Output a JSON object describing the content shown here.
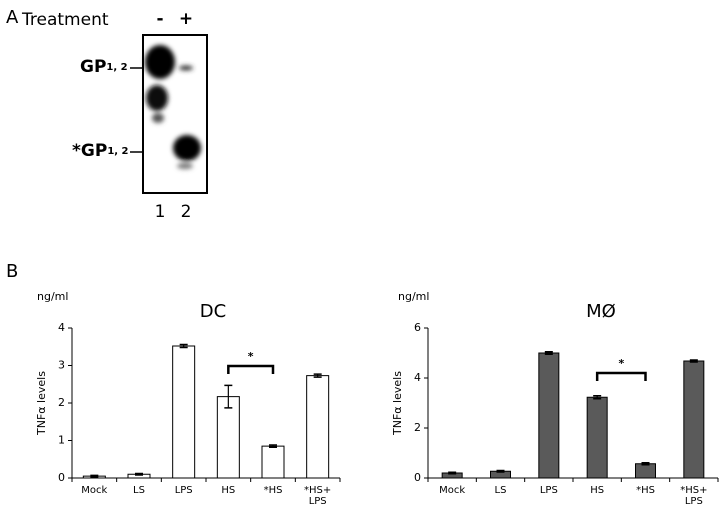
{
  "panel_a": {
    "label": "A",
    "treatment": "Treatment",
    "lanes_treatment": [
      "-",
      "+"
    ],
    "bands": [
      {
        "main": "GP",
        "sub": "1, 2"
      },
      {
        "main": "*GP",
        "sub": "1, 2"
      }
    ],
    "lanes": [
      "1",
      "2"
    ]
  },
  "panel_b": {
    "label": "B"
  },
  "chart_data": [
    {
      "type": "bar",
      "title": "DC",
      "unit": "ng/ml",
      "y_label": "TNFα levels",
      "categories": [
        "Mock",
        "LS",
        "LPS",
        "HS",
        "*HS",
        "*HS+\nLPS"
      ],
      "values": [
        0.05,
        0.1,
        3.52,
        2.17,
        0.85,
        2.73
      ],
      "errors": [
        0.02,
        0.02,
        0.04,
        0.3,
        0.03,
        0.04
      ],
      "color": "#ffffff",
      "significance": "*",
      "ylim": [
        0,
        4
      ],
      "yticks": [
        0,
        1,
        2,
        3,
        4
      ]
    },
    {
      "type": "bar",
      "title": "MØ",
      "unit": "ng/ml",
      "y_label": "TNFα levels",
      "categories": [
        "Mock",
        "LS",
        "LPS",
        "HS",
        "*HS",
        "*HS+\nLPS"
      ],
      "values": [
        0.2,
        0.27,
        5.0,
        3.23,
        0.57,
        4.68
      ],
      "errors": [
        0.03,
        0.03,
        0.05,
        0.06,
        0.04,
        0.04
      ],
      "color": "#5a5a5a",
      "significance": "*",
      "ylim": [
        0,
        6
      ],
      "yticks": [
        0,
        2,
        4,
        6
      ]
    }
  ]
}
